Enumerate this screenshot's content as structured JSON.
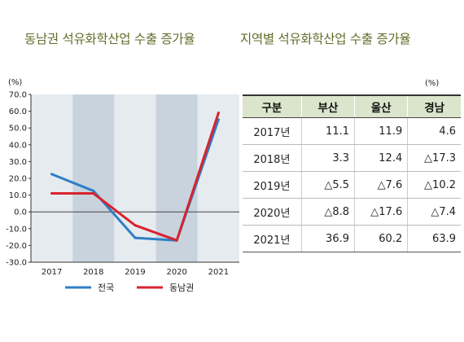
{
  "titles": {
    "left": "동남권 석유화학산업 수출 증가율",
    "right": "지역별 석유화학산업 수출 증가율"
  },
  "chart_data": {
    "type": "line",
    "unit": "(%)",
    "categories": [
      "2017",
      "2018",
      "2019",
      "2020",
      "2021"
    ],
    "ylim": [
      -30.0,
      70.0
    ],
    "yticks": [
      "70.0",
      "60.0",
      "50.0",
      "40.0",
      "30.0",
      "20.0",
      "10.0",
      "0.0",
      "-10.0",
      "-20.0",
      "-30.0"
    ],
    "grid": false,
    "shaded_bands": [
      "2018",
      "2020"
    ],
    "legend_position": "bottom",
    "series": [
      {
        "name": "전국",
        "color": "#2e7fc6",
        "values": [
          22.5,
          12.5,
          -15.5,
          -17.0,
          55.0
        ]
      },
      {
        "name": "동남권",
        "color": "#d8232f",
        "values": [
          11.0,
          11.0,
          -8.0,
          -17.0,
          59.0
        ]
      }
    ]
  },
  "table": {
    "unit": "(%)",
    "headers": [
      "구분",
      "부산",
      "울산",
      "경남"
    ],
    "rows": [
      [
        "2017년",
        "11.1",
        "11.9",
        "4.6"
      ],
      [
        "2018년",
        "3.3",
        "12.4",
        "△17.3"
      ],
      [
        "2019년",
        "△5.5",
        "△7.6",
        "△10.2"
      ],
      [
        "2020년",
        "△8.8",
        "△17.6",
        "△7.4"
      ],
      [
        "2021년",
        "36.9",
        "60.2",
        "63.9"
      ]
    ]
  }
}
